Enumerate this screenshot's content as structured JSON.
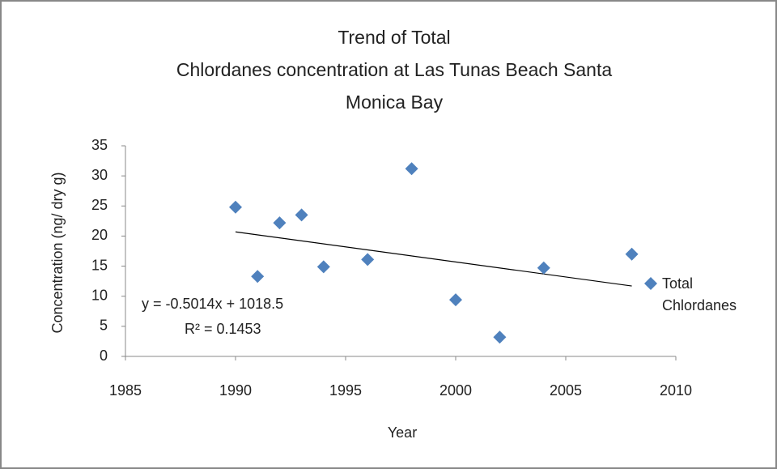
{
  "chart_data": {
    "type": "scatter",
    "title": [
      "Trend of Total",
      "Chlordanes concentration at Las Tunas Beach Santa",
      "Monica Bay"
    ],
    "x_label": "Year",
    "y_label": "Concentration (ng/ dry g)",
    "series": [
      {
        "name": "Total Chlordanes",
        "color": "#4f81bd",
        "x": [
          1990,
          1991,
          1992,
          1993,
          1994,
          1996,
          1998,
          2000,
          2002,
          2004,
          2008
        ],
        "values": [
          24.8,
          13.3,
          22.2,
          23.5,
          14.9,
          16.1,
          31.2,
          9.4,
          3.2,
          14.7,
          17.0
        ]
      }
    ],
    "trendline": {
      "color": "#000000",
      "x": [
        1990,
        2008
      ],
      "values": [
        20.7,
        11.7
      ]
    },
    "annotations": [
      "y = -0.5014x + 1018.5",
      "R² = 0.1453"
    ],
    "xlim": [
      1985,
      2010
    ],
    "xticks": [
      1985,
      1990,
      1995,
      2000,
      2005,
      2010
    ],
    "ylim": [
      0,
      35
    ],
    "yticks": [
      0,
      5,
      10,
      15,
      20,
      25,
      30,
      35
    ],
    "legend": "right"
  }
}
